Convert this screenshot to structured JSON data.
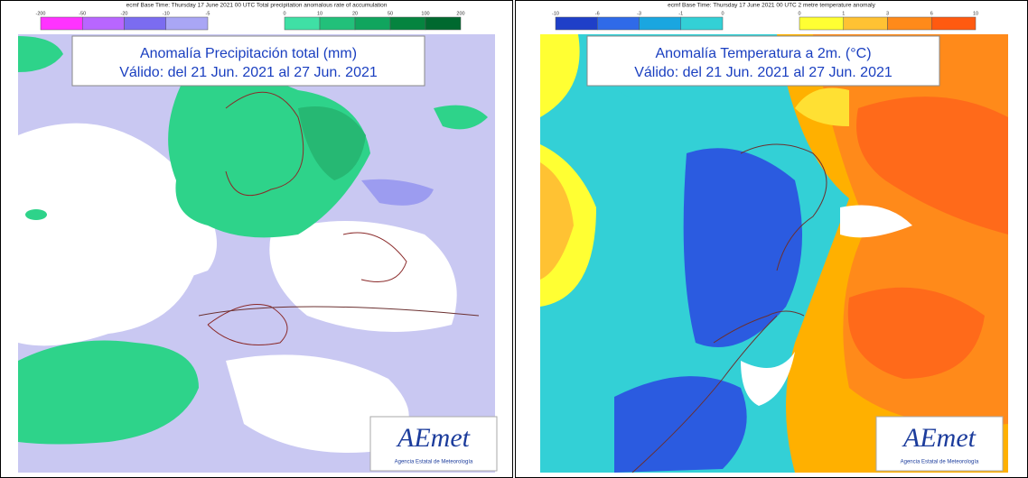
{
  "panels": [
    {
      "header": "ecmf  Base Time: Thursday 17 June 2021 00 UTC Total precipitation anomalous rate of accumulation",
      "scale": {
        "negative": [
          -200,
          -50,
          -20,
          -10,
          -5
        ],
        "positive": [
          0,
          10,
          20,
          50,
          100,
          200
        ]
      },
      "title": "Anomalía Precipitación total (mm)",
      "subtitle": "Válido: del 21 Jun. 2021 al 27 Jun. 2021",
      "logo": "AEmet",
      "logo_caption": "Agencia Estatal de Meteorología"
    },
    {
      "header": "ecmf  Base Time: Thursday 17 June 2021 00 UTC 2 metre temperature anomaly",
      "scale": {
        "negative": [
          -10,
          -6,
          -3,
          -1,
          0
        ],
        "positive": [
          0,
          1,
          3,
          6,
          10
        ]
      },
      "title": "Anomalía Temperatura a 2m. (°C)",
      "subtitle": "Válido: del 21 Jun. 2021 al 27 Jun. 2021",
      "logo": "AEmet",
      "logo_caption": "Agencia Estatal de Meteorología"
    }
  ]
}
